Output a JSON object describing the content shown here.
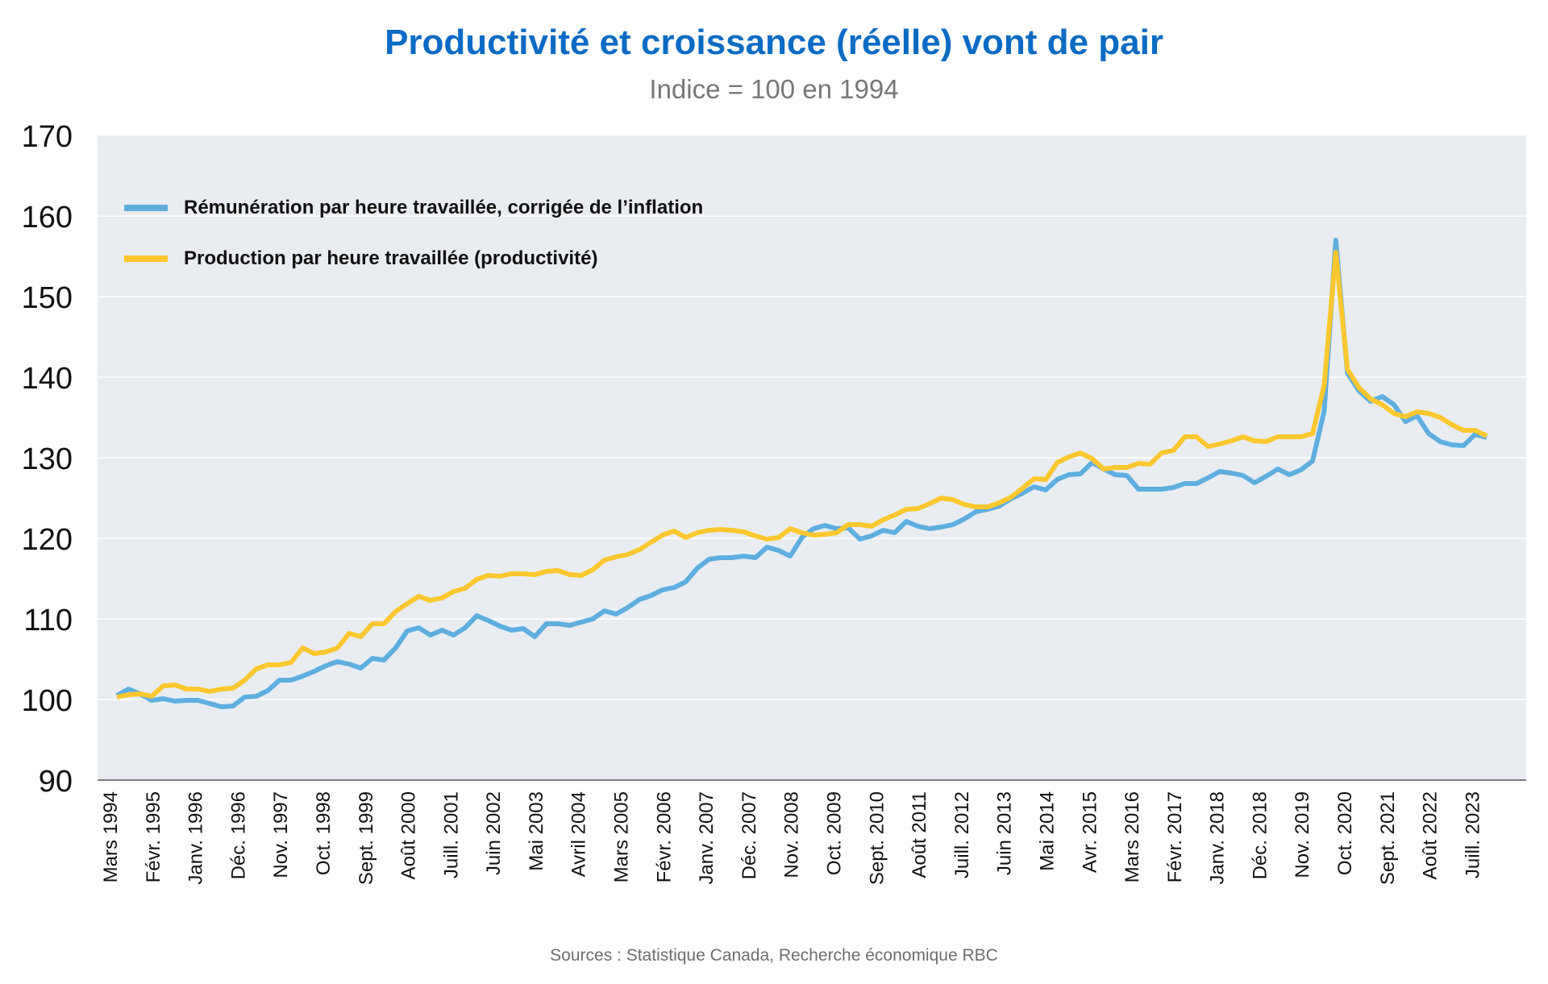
{
  "header": {
    "title": "Productivité et croissance (réelle) vont de pair",
    "subtitle": "Indice = 100 en 1994"
  },
  "footer": {
    "sources": "Sources : Statistique Canada, Recherche économique RBC"
  },
  "colors": {
    "title": "#0a6bc4",
    "plot_bg": "#e9edf1",
    "series_blue": "#5eaee0",
    "series_yellow": "#fdc72f"
  },
  "chart_data": {
    "type": "line",
    "title": "Productivité et croissance (réelle) vont de pair",
    "subtitle": "Indice = 100 en 1994",
    "xlabel": "",
    "ylabel": "",
    "ylim": [
      90,
      170
    ],
    "yticks": [
      90,
      100,
      110,
      120,
      130,
      140,
      150,
      160,
      170
    ],
    "grid": true,
    "legend_position": "top-left",
    "x_tick_labels": [
      "Mars 1994",
      "Févr. 1995",
      "Janv. 1996",
      "Déc. 1996",
      "Nov. 1997",
      "Oct. 1998",
      "Sept. 1999",
      "Août 2000",
      "Juill. 2001",
      "Juin 2002",
      "Mai 2003",
      "Avril 2004",
      "Mars 2005",
      "Févr. 2006",
      "Janv. 2007",
      "Déc. 2007",
      "Nov. 2008",
      "Oct. 2009",
      "Sept. 2010",
      "Août 2011",
      "Juill. 2012",
      "Juin 2013",
      "Mai 2014",
      "Avr. 2015",
      "Mars 2016",
      "Févr. 2017",
      "Janv. 2018",
      "Déc. 2018",
      "Nov. 2019",
      "Oct. 2020",
      "Sept. 2021",
      "Août 2022",
      "Juill. 2023"
    ],
    "x_range_months": [
      0,
      354
    ],
    "tick_interval_months": 11,
    "series": [
      {
        "name": "Rémunération par heure travaillée, corrigée de l’inflation",
        "color": "#5eaee0",
        "values": [
          100.5,
          101.3,
          100.7,
          99.9,
          100.1,
          99.8,
          99.9,
          99.9,
          99.5,
          99.1,
          99.2,
          100.3,
          100.4,
          101.1,
          102.4,
          102.4,
          102.9,
          103.5,
          104.2,
          104.7,
          104.4,
          103.9,
          105.1,
          104.9,
          106.4,
          108.5,
          108.9,
          108.0,
          108.6,
          108.0,
          108.9,
          110.4,
          109.8,
          109.1,
          108.6,
          108.8,
          107.8,
          109.4,
          109.4,
          109.2,
          109.6,
          110.0,
          111.0,
          110.6,
          111.4,
          112.4,
          112.9,
          113.6,
          113.9,
          114.6,
          116.3,
          117.4,
          117.6,
          117.6,
          117.8,
          117.6,
          118.9,
          118.5,
          117.8,
          120.1,
          121.2,
          121.6,
          121.2,
          121.3,
          119.9,
          120.3,
          121.0,
          120.7,
          122.1,
          121.5,
          121.2,
          121.4,
          121.7,
          122.4,
          123.3,
          123.6,
          124.0,
          124.9,
          125.6,
          126.4,
          126.0,
          127.3,
          127.9,
          128.0,
          129.4,
          128.6,
          127.9,
          127.8,
          126.1,
          126.1,
          126.1,
          126.3,
          126.8,
          126.8,
          127.5,
          128.3,
          128.1,
          127.8,
          126.9,
          127.7,
          128.6,
          127.9,
          128.5,
          129.6,
          135.8,
          157.0,
          140.5,
          138.3,
          137.0,
          137.6,
          136.6,
          134.5,
          135.2,
          133.0,
          132.0,
          131.6,
          131.5,
          132.9,
          132.5
        ]
      },
      {
        "name": "Production par heure travaillée (productivité)",
        "color": "#fdc72f",
        "values": [
          100.3,
          100.6,
          100.7,
          100.4,
          101.7,
          101.8,
          101.3,
          101.3,
          101.0,
          101.3,
          101.4,
          102.4,
          103.8,
          104.3,
          104.3,
          104.6,
          106.4,
          105.7,
          105.9,
          106.4,
          108.2,
          107.8,
          109.4,
          109.4,
          110.9,
          111.9,
          112.8,
          112.3,
          112.6,
          113.4,
          113.8,
          114.9,
          115.4,
          115.3,
          115.6,
          115.6,
          115.5,
          115.9,
          116.0,
          115.5,
          115.4,
          116.1,
          117.3,
          117.7,
          118.0,
          118.6,
          119.5,
          120.4,
          120.9,
          120.1,
          120.7,
          121.0,
          121.1,
          121.0,
          120.8,
          120.3,
          119.9,
          120.1,
          121.2,
          120.7,
          120.4,
          120.5,
          120.7,
          121.7,
          121.7,
          121.5,
          122.3,
          122.9,
          123.6,
          123.7,
          124.3,
          125.0,
          124.8,
          124.2,
          123.9,
          123.9,
          124.4,
          125.1,
          126.2,
          127.4,
          127.3,
          129.4,
          130.1,
          130.6,
          129.9,
          128.6,
          128.8,
          128.8,
          129.3,
          129.2,
          130.6,
          130.9,
          132.6,
          132.6,
          131.4,
          131.7,
          132.1,
          132.6,
          132.1,
          132.0,
          132.6,
          132.6,
          132.6,
          133.0,
          139.0,
          155.5,
          141.0,
          138.7,
          137.3,
          136.6,
          135.5,
          135.1,
          135.7,
          135.5,
          135.0,
          134.1,
          133.4,
          133.4,
          132.7
        ]
      }
    ]
  }
}
